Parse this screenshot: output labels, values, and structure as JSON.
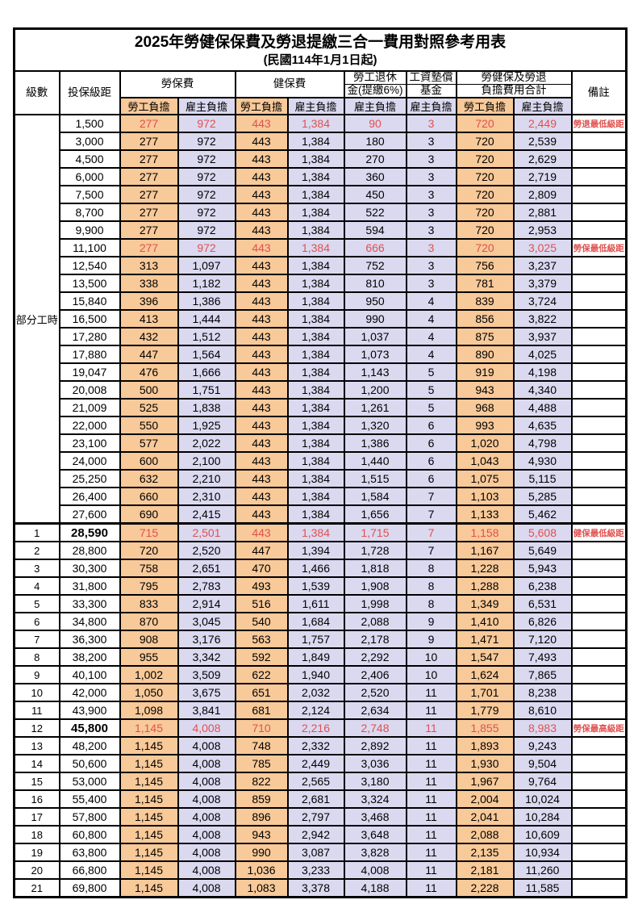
{
  "title": "2025年勞健保保費及勞退提繳三合一費用對照參考用表",
  "subtitle": "(民國114年1月1日起)",
  "header": {
    "level": "級數",
    "bracket": "投保級距",
    "labor_insurance": "勞保費",
    "health_insurance": "健保費",
    "pension_line1": "勞工退休",
    "pension_line2": "金(提繳6%)",
    "wage_fund_line1": "工資墊償",
    "wage_fund_line2": "基金",
    "total_line1": "勞健保及勞退",
    "total_line2": "負擔費用合計",
    "remark": "備註",
    "employee_label": "勞工負擔",
    "employer_label": "雇主負擔"
  },
  "part_time_label": "部分工時",
  "part_time_row_count": 23,
  "colors": {
    "employee_bg": "#f8c999",
    "employer_bg": "#dbd9f0",
    "highlight_red": "#e0514f"
  },
  "rows": [
    {
      "level": "",
      "bracket": "1,500",
      "values": [
        "277",
        "972",
        "443",
        "1,384",
        "90",
        "3",
        "720",
        "2,449"
      ],
      "remark": "勞退最低級距",
      "red": true
    },
    {
      "level": "",
      "bracket": "3,000",
      "values": [
        "277",
        "972",
        "443",
        "1,384",
        "180",
        "3",
        "720",
        "2,539"
      ],
      "remark": ""
    },
    {
      "level": "",
      "bracket": "4,500",
      "values": [
        "277",
        "972",
        "443",
        "1,384",
        "270",
        "3",
        "720",
        "2,629"
      ],
      "remark": ""
    },
    {
      "level": "",
      "bracket": "6,000",
      "values": [
        "277",
        "972",
        "443",
        "1,384",
        "360",
        "3",
        "720",
        "2,719"
      ],
      "remark": ""
    },
    {
      "level": "",
      "bracket": "7,500",
      "values": [
        "277",
        "972",
        "443",
        "1,384",
        "450",
        "3",
        "720",
        "2,809"
      ],
      "remark": ""
    },
    {
      "level": "",
      "bracket": "8,700",
      "values": [
        "277",
        "972",
        "443",
        "1,384",
        "522",
        "3",
        "720",
        "2,881"
      ],
      "remark": ""
    },
    {
      "level": "",
      "bracket": "9,900",
      "values": [
        "277",
        "972",
        "443",
        "1,384",
        "594",
        "3",
        "720",
        "2,953"
      ],
      "remark": ""
    },
    {
      "level": "",
      "bracket": "11,100",
      "values": [
        "277",
        "972",
        "443",
        "1,384",
        "666",
        "3",
        "720",
        "3,025"
      ],
      "remark": "勞保最低級距",
      "red": true
    },
    {
      "level": "",
      "bracket": "12,540",
      "values": [
        "313",
        "1,097",
        "443",
        "1,384",
        "752",
        "3",
        "756",
        "3,237"
      ],
      "remark": ""
    },
    {
      "level": "",
      "bracket": "13,500",
      "values": [
        "338",
        "1,182",
        "443",
        "1,384",
        "810",
        "3",
        "781",
        "3,379"
      ],
      "remark": ""
    },
    {
      "level": "",
      "bracket": "15,840",
      "values": [
        "396",
        "1,386",
        "443",
        "1,384",
        "950",
        "4",
        "839",
        "3,724"
      ],
      "remark": ""
    },
    {
      "level": "",
      "bracket": "16,500",
      "values": [
        "413",
        "1,444",
        "443",
        "1,384",
        "990",
        "4",
        "856",
        "3,822"
      ],
      "remark": ""
    },
    {
      "level": "",
      "bracket": "17,280",
      "values": [
        "432",
        "1,512",
        "443",
        "1,384",
        "1,037",
        "4",
        "875",
        "3,937"
      ],
      "remark": ""
    },
    {
      "level": "",
      "bracket": "17,880",
      "values": [
        "447",
        "1,564",
        "443",
        "1,384",
        "1,073",
        "4",
        "890",
        "4,025"
      ],
      "remark": ""
    },
    {
      "level": "",
      "bracket": "19,047",
      "values": [
        "476",
        "1,666",
        "443",
        "1,384",
        "1,143",
        "5",
        "919",
        "4,198"
      ],
      "remark": ""
    },
    {
      "level": "",
      "bracket": "20,008",
      "values": [
        "500",
        "1,751",
        "443",
        "1,384",
        "1,200",
        "5",
        "943",
        "4,340"
      ],
      "remark": ""
    },
    {
      "level": "",
      "bracket": "21,009",
      "values": [
        "525",
        "1,838",
        "443",
        "1,384",
        "1,261",
        "5",
        "968",
        "4,488"
      ],
      "remark": ""
    },
    {
      "level": "",
      "bracket": "22,000",
      "values": [
        "550",
        "1,925",
        "443",
        "1,384",
        "1,320",
        "6",
        "993",
        "4,635"
      ],
      "remark": ""
    },
    {
      "level": "",
      "bracket": "23,100",
      "values": [
        "577",
        "2,022",
        "443",
        "1,384",
        "1,386",
        "6",
        "1,020",
        "4,798"
      ],
      "remark": ""
    },
    {
      "level": "",
      "bracket": "24,000",
      "values": [
        "600",
        "2,100",
        "443",
        "1,384",
        "1,440",
        "6",
        "1,043",
        "4,930"
      ],
      "remark": ""
    },
    {
      "level": "",
      "bracket": "25,250",
      "values": [
        "632",
        "2,210",
        "443",
        "1,384",
        "1,515",
        "6",
        "1,075",
        "5,115"
      ],
      "remark": ""
    },
    {
      "level": "",
      "bracket": "26,400",
      "values": [
        "660",
        "2,310",
        "443",
        "1,384",
        "1,584",
        "7",
        "1,103",
        "5,285"
      ],
      "remark": ""
    },
    {
      "level": "",
      "bracket": "27,600",
      "values": [
        "690",
        "2,415",
        "443",
        "1,384",
        "1,656",
        "7",
        "1,133",
        "5,462"
      ],
      "remark": ""
    },
    {
      "level": "1",
      "bracket": "28,590",
      "values": [
        "715",
        "2,501",
        "443",
        "1,384",
        "1,715",
        "7",
        "1,158",
        "5,608"
      ],
      "remark": "健保最低級距",
      "red": true,
      "bold_bracket": true
    },
    {
      "level": "2",
      "bracket": "28,800",
      "values": [
        "720",
        "2,520",
        "447",
        "1,394",
        "1,728",
        "7",
        "1,167",
        "5,649"
      ],
      "remark": ""
    },
    {
      "level": "3",
      "bracket": "30,300",
      "values": [
        "758",
        "2,651",
        "470",
        "1,466",
        "1,818",
        "8",
        "1,228",
        "5,943"
      ],
      "remark": ""
    },
    {
      "level": "4",
      "bracket": "31,800",
      "values": [
        "795",
        "2,783",
        "493",
        "1,539",
        "1,908",
        "8",
        "1,288",
        "6,238"
      ],
      "remark": ""
    },
    {
      "level": "5",
      "bracket": "33,300",
      "values": [
        "833",
        "2,914",
        "516",
        "1,611",
        "1,998",
        "8",
        "1,349",
        "6,531"
      ],
      "remark": ""
    },
    {
      "level": "6",
      "bracket": "34,800",
      "values": [
        "870",
        "3,045",
        "540",
        "1,684",
        "2,088",
        "9",
        "1,410",
        "6,826"
      ],
      "remark": ""
    },
    {
      "level": "7",
      "bracket": "36,300",
      "values": [
        "908",
        "3,176",
        "563",
        "1,757",
        "2,178",
        "9",
        "1,471",
        "7,120"
      ],
      "remark": ""
    },
    {
      "level": "8",
      "bracket": "38,200",
      "values": [
        "955",
        "3,342",
        "592",
        "1,849",
        "2,292",
        "10",
        "1,547",
        "7,493"
      ],
      "remark": ""
    },
    {
      "level": "9",
      "bracket": "40,100",
      "values": [
        "1,002",
        "3,509",
        "622",
        "1,940",
        "2,406",
        "10",
        "1,624",
        "7,865"
      ],
      "remark": ""
    },
    {
      "level": "10",
      "bracket": "42,000",
      "values": [
        "1,050",
        "3,675",
        "651",
        "2,032",
        "2,520",
        "11",
        "1,701",
        "8,238"
      ],
      "remark": ""
    },
    {
      "level": "11",
      "bracket": "43,900",
      "values": [
        "1,098",
        "3,841",
        "681",
        "2,124",
        "2,634",
        "11",
        "1,779",
        "8,610"
      ],
      "remark": ""
    },
    {
      "level": "12",
      "bracket": "45,800",
      "values": [
        "1,145",
        "4,008",
        "710",
        "2,216",
        "2,748",
        "11",
        "1,855",
        "8,983"
      ],
      "remark": "勞保最高級距",
      "red": true,
      "bold_bracket": true
    },
    {
      "level": "13",
      "bracket": "48,200",
      "values": [
        "1,145",
        "4,008",
        "748",
        "2,332",
        "2,892",
        "11",
        "1,893",
        "9,243"
      ],
      "remark": ""
    },
    {
      "level": "14",
      "bracket": "50,600",
      "values": [
        "1,145",
        "4,008",
        "785",
        "2,449",
        "3,036",
        "11",
        "1,930",
        "9,504"
      ],
      "remark": ""
    },
    {
      "level": "15",
      "bracket": "53,000",
      "values": [
        "1,145",
        "4,008",
        "822",
        "2,565",
        "3,180",
        "11",
        "1,967",
        "9,764"
      ],
      "remark": ""
    },
    {
      "level": "16",
      "bracket": "55,400",
      "values": [
        "1,145",
        "4,008",
        "859",
        "2,681",
        "3,324",
        "11",
        "2,004",
        "10,024"
      ],
      "remark": ""
    },
    {
      "level": "17",
      "bracket": "57,800",
      "values": [
        "1,145",
        "4,008",
        "896",
        "2,797",
        "3,468",
        "11",
        "2,041",
        "10,284"
      ],
      "remark": ""
    },
    {
      "level": "18",
      "bracket": "60,800",
      "values": [
        "1,145",
        "4,008",
        "943",
        "2,942",
        "3,648",
        "11",
        "2,088",
        "10,609"
      ],
      "remark": ""
    },
    {
      "level": "19",
      "bracket": "63,800",
      "values": [
        "1,145",
        "4,008",
        "990",
        "3,087",
        "3,828",
        "11",
        "2,135",
        "10,934"
      ],
      "remark": ""
    },
    {
      "level": "20",
      "bracket": "66,800",
      "values": [
        "1,145",
        "4,008",
        "1,036",
        "3,233",
        "4,008",
        "11",
        "2,181",
        "11,260"
      ],
      "remark": ""
    },
    {
      "level": "21",
      "bracket": "69,800",
      "values": [
        "1,145",
        "4,008",
        "1,083",
        "3,378",
        "4,188",
        "11",
        "2,228",
        "11,585"
      ],
      "remark": ""
    }
  ]
}
